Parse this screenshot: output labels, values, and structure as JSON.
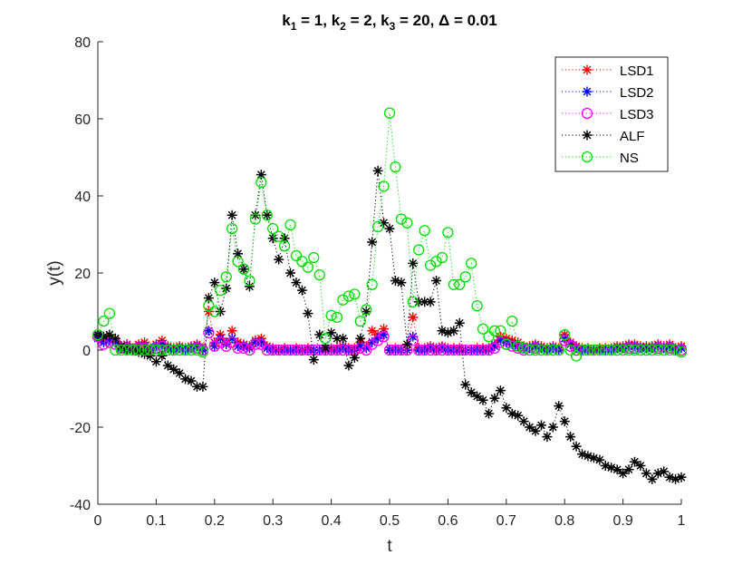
{
  "chart_data": {
    "type": "line",
    "title": {
      "parts": [
        "k",
        "1",
        " = 1, k",
        "2",
        " = 2, k",
        "3",
        " = 20, Δ = 0.01"
      ]
    },
    "xlabel": "t",
    "ylabel": "y(t)",
    "xlim": [
      0,
      1
    ],
    "ylim": [
      -40,
      80
    ],
    "xticks": [
      0,
      0.1,
      0.2,
      0.3,
      0.4,
      0.5,
      0.6,
      0.7,
      0.8,
      0.9,
      1
    ],
    "xtick_labels": [
      "0",
      "0.1",
      "0.2",
      "0.3",
      "0.4",
      "0.5",
      "0.6",
      "0.7",
      "0.8",
      "0.9",
      "1"
    ],
    "yticks": [
      -40,
      -20,
      0,
      20,
      40,
      60,
      80
    ],
    "ytick_labels": [
      "-40",
      "-20",
      "0",
      "20",
      "40",
      "60",
      "80"
    ],
    "legend_position": "top-right",
    "series": [
      {
        "name": "LSD1",
        "color": "#ff0000",
        "marker": "asterisk",
        "x": [
          0.0,
          0.01,
          0.02,
          0.03,
          0.04,
          0.05,
          0.06,
          0.07,
          0.08,
          0.09,
          0.1,
          0.11,
          0.12,
          0.13,
          0.14,
          0.15,
          0.16,
          0.17,
          0.18,
          0.19,
          0.2,
          0.21,
          0.22,
          0.23,
          0.24,
          0.25,
          0.26,
          0.27,
          0.28,
          0.29,
          0.3,
          0.31,
          0.32,
          0.33,
          0.34,
          0.35,
          0.36,
          0.37,
          0.38,
          0.39,
          0.4,
          0.41,
          0.42,
          0.43,
          0.44,
          0.45,
          0.46,
          0.47,
          0.48,
          0.49,
          0.5,
          0.51,
          0.52,
          0.53,
          0.54,
          0.55,
          0.56,
          0.57,
          0.58,
          0.59,
          0.6,
          0.61,
          0.62,
          0.63,
          0.64,
          0.65,
          0.66,
          0.67,
          0.68,
          0.69,
          0.7,
          0.71,
          0.72,
          0.73,
          0.74,
          0.75,
          0.76,
          0.77,
          0.78,
          0.79,
          0.8,
          0.81,
          0.82,
          0.83,
          0.84,
          0.85,
          0.86,
          0.87,
          0.88,
          0.89,
          0.9,
          0.91,
          0.92,
          0.93,
          0.94,
          0.95,
          0.96,
          0.97,
          0.98,
          0.99,
          1.0
        ],
        "y": [
          3.5,
          2.5,
          3,
          2.5,
          1,
          1.5,
          0.5,
          1.5,
          2,
          0.5,
          1.5,
          2.5,
          1,
          0.5,
          1,
          0.5,
          1,
          1.5,
          0.5,
          10,
          2,
          4,
          2,
          5,
          2,
          1.5,
          1,
          2.5,
          3,
          1,
          0.5,
          0,
          0.5,
          0,
          0.5,
          0,
          0.5,
          0,
          0,
          0.5,
          0.5,
          0.5,
          1,
          0.5,
          0.5,
          2,
          1,
          5,
          4,
          5.5,
          0,
          0.5,
          0,
          0,
          8.5,
          0.5,
          0.5,
          1,
          0.5,
          1,
          0.5,
          0.5,
          0.5,
          0,
          0,
          0.5,
          0.5,
          0.5,
          1.5,
          3.5,
          3,
          2.5,
          2,
          1,
          1,
          1.5,
          1,
          0.5,
          1,
          0.5,
          4,
          2,
          1,
          0.5,
          0.5,
          0,
          0.5,
          0.5,
          0.5,
          1,
          1,
          1.5,
          1.5,
          1,
          1,
          1,
          1.5,
          1,
          1.5,
          0.5,
          1
        ]
      },
      {
        "name": "LSD2",
        "color": "#0000ff",
        "marker": "asterisk",
        "x": [
          0.0,
          0.01,
          0.02,
          0.03,
          0.04,
          0.05,
          0.06,
          0.07,
          0.08,
          0.09,
          0.1,
          0.11,
          0.12,
          0.13,
          0.14,
          0.15,
          0.16,
          0.17,
          0.18,
          0.19,
          0.2,
          0.21,
          0.22,
          0.23,
          0.24,
          0.25,
          0.26,
          0.27,
          0.28,
          0.29,
          0.3,
          0.31,
          0.32,
          0.33,
          0.34,
          0.35,
          0.36,
          0.37,
          0.38,
          0.39,
          0.4,
          0.41,
          0.42,
          0.43,
          0.44,
          0.45,
          0.46,
          0.47,
          0.48,
          0.49,
          0.5,
          0.51,
          0.52,
          0.53,
          0.54,
          0.55,
          0.56,
          0.57,
          0.58,
          0.59,
          0.6,
          0.61,
          0.62,
          0.63,
          0.64,
          0.65,
          0.66,
          0.67,
          0.68,
          0.69,
          0.7,
          0.71,
          0.72,
          0.73,
          0.74,
          0.75,
          0.76,
          0.77,
          0.78,
          0.79,
          0.8,
          0.81,
          0.82,
          0.83,
          0.84,
          0.85,
          0.86,
          0.87,
          0.88,
          0.89,
          0.9,
          0.91,
          0.92,
          0.93,
          0.94,
          0.95,
          0.96,
          0.97,
          0.98,
          0.99,
          1.0
        ],
        "y": [
          3,
          2,
          2.5,
          2,
          0.5,
          1,
          0,
          1,
          1,
          0,
          1,
          1.5,
          0.5,
          0,
          0.5,
          0,
          0.5,
          1,
          0,
          5,
          1,
          3,
          1.5,
          3,
          1,
          1,
          0.5,
          2,
          2,
          0.5,
          0,
          0,
          0,
          0,
          0,
          0,
          0,
          0,
          0,
          0,
          0,
          0,
          0.5,
          0,
          0,
          1,
          0.5,
          2,
          3,
          4,
          0,
          0,
          0,
          0,
          3.5,
          0,
          0,
          0.5,
          0,
          0.5,
          0,
          0,
          0,
          0,
          0,
          0,
          0,
          0,
          1,
          2.5,
          2,
          1.5,
          1,
          0.5,
          0.5,
          1,
          0.5,
          0,
          0.5,
          0,
          3,
          1.5,
          0.5,
          0,
          0,
          0,
          0,
          0,
          0,
          0.5,
          0.5,
          1,
          1,
          0.5,
          0.5,
          0.5,
          1,
          0.5,
          1,
          0,
          0.5
        ]
      },
      {
        "name": "LSD3",
        "color": "#ff00ff",
        "marker": "circle",
        "x": [
          0.0,
          0.01,
          0.02,
          0.03,
          0.04,
          0.05,
          0.06,
          0.07,
          0.08,
          0.09,
          0.1,
          0.11,
          0.12,
          0.13,
          0.14,
          0.15,
          0.16,
          0.17,
          0.18,
          0.19,
          0.2,
          0.21,
          0.22,
          0.23,
          0.24,
          0.25,
          0.26,
          0.27,
          0.28,
          0.29,
          0.3,
          0.31,
          0.32,
          0.33,
          0.34,
          0.35,
          0.36,
          0.37,
          0.38,
          0.39,
          0.4,
          0.41,
          0.42,
          0.43,
          0.44,
          0.45,
          0.46,
          0.47,
          0.48,
          0.49,
          0.5,
          0.51,
          0.52,
          0.53,
          0.54,
          0.55,
          0.56,
          0.57,
          0.58,
          0.59,
          0.6,
          0.61,
          0.62,
          0.63,
          0.64,
          0.65,
          0.66,
          0.67,
          0.68,
          0.69,
          0.7,
          0.71,
          0.72,
          0.73,
          0.74,
          0.75,
          0.76,
          0.77,
          0.78,
          0.79,
          0.8,
          0.81,
          0.82,
          0.83,
          0.84,
          0.85,
          0.86,
          0.87,
          0.88,
          0.89,
          0.9,
          0.91,
          0.92,
          0.93,
          0.94,
          0.95,
          0.96,
          0.97,
          0.98,
          0.99,
          1.0
        ],
        "y": [
          3.5,
          1.5,
          2,
          1.5,
          0.5,
          0.5,
          0,
          0.5,
          0.5,
          0,
          0.5,
          1,
          0,
          0,
          0,
          0,
          0,
          0.5,
          0,
          4.5,
          1,
          2,
          1,
          2,
          0.5,
          0.5,
          0,
          1.5,
          1.5,
          0,
          0,
          0,
          0,
          0,
          0,
          0,
          0,
          0,
          0,
          0,
          0,
          0,
          0,
          0,
          0,
          0.5,
          0,
          1.5,
          2.5,
          3.5,
          0,
          0,
          0,
          0,
          2.5,
          0,
          0,
          0,
          0,
          0,
          0,
          0,
          0,
          0,
          0,
          0,
          0,
          0,
          0.5,
          2,
          1.5,
          1,
          0.5,
          0,
          0,
          0.5,
          0,
          0,
          0,
          0,
          2.5,
          1,
          0,
          0,
          0,
          0,
          0,
          0,
          0,
          0,
          0,
          0.5,
          0.5,
          0,
          0,
          0,
          0.5,
          0,
          0.5,
          0,
          0
        ]
      },
      {
        "name": "ALF",
        "color": "#000000",
        "marker": "asterisk",
        "x": [
          0.0,
          0.01,
          0.02,
          0.03,
          0.04,
          0.05,
          0.06,
          0.07,
          0.08,
          0.09,
          0.1,
          0.11,
          0.12,
          0.13,
          0.14,
          0.15,
          0.16,
          0.17,
          0.18,
          0.19,
          0.2,
          0.21,
          0.22,
          0.23,
          0.24,
          0.25,
          0.26,
          0.27,
          0.28,
          0.29,
          0.3,
          0.31,
          0.32,
          0.33,
          0.34,
          0.35,
          0.36,
          0.37,
          0.38,
          0.39,
          0.4,
          0.41,
          0.42,
          0.43,
          0.44,
          0.45,
          0.46,
          0.47,
          0.48,
          0.49,
          0.5,
          0.51,
          0.52,
          0.53,
          0.54,
          0.55,
          0.56,
          0.57,
          0.58,
          0.59,
          0.6,
          0.61,
          0.62,
          0.63,
          0.64,
          0.65,
          0.66,
          0.67,
          0.68,
          0.69,
          0.7,
          0.71,
          0.72,
          0.73,
          0.74,
          0.75,
          0.76,
          0.77,
          0.78,
          0.79,
          0.8,
          0.81,
          0.82,
          0.83,
          0.84,
          0.85,
          0.86,
          0.87,
          0.88,
          0.89,
          0.9,
          0.91,
          0.92,
          0.93,
          0.94,
          0.95,
          0.96,
          0.97,
          0.98,
          0.99,
          1.0
        ],
        "y": [
          4,
          3.5,
          4,
          3,
          1,
          0,
          0,
          -0.5,
          -1,
          -1.5,
          -3,
          -1.5,
          -4,
          -5,
          -6,
          -7.5,
          -8,
          -9.5,
          -9.5,
          13.5,
          17.5,
          10,
          16,
          35,
          25,
          21,
          16.5,
          35,
          45.5,
          35,
          29,
          23.5,
          29,
          20,
          17.5,
          15.5,
          9.5,
          -2.5,
          4,
          0.5,
          4.5,
          3,
          3,
          -4,
          -2,
          3,
          10,
          28,
          46.5,
          33,
          31.5,
          18,
          17.5,
          1.5,
          22.5,
          12.5,
          12.5,
          12.5,
          18,
          5,
          4.5,
          5,
          7,
          -9,
          -11,
          -12,
          -13,
          -16.5,
          -12.5,
          -10.5,
          -15,
          -16.5,
          -17,
          -18.5,
          -20,
          -21,
          -19.5,
          -22.5,
          -20,
          -14.5,
          -18.5,
          -22.5,
          -25,
          -27,
          -27.5,
          -28,
          -28.5,
          -30,
          -30.5,
          -31,
          -32,
          -31,
          -29,
          -30,
          -32,
          -33.5,
          -32,
          -31.5,
          -33,
          -33.5,
          -33
        ]
      },
      {
        "name": "NS",
        "color": "#00e000",
        "marker": "circle",
        "x": [
          0.0,
          0.01,
          0.02,
          0.03,
          0.04,
          0.05,
          0.06,
          0.07,
          0.08,
          0.09,
          0.1,
          0.11,
          0.12,
          0.13,
          0.14,
          0.15,
          0.16,
          0.17,
          0.18,
          0.19,
          0.2,
          0.21,
          0.22,
          0.23,
          0.24,
          0.25,
          0.26,
          0.27,
          0.28,
          0.29,
          0.3,
          0.31,
          0.32,
          0.33,
          0.34,
          0.35,
          0.36,
          0.37,
          0.38,
          0.39,
          0.4,
          0.41,
          0.42,
          0.43,
          0.44,
          0.45,
          0.46,
          0.47,
          0.48,
          0.49,
          0.5,
          0.51,
          0.52,
          0.53,
          0.54,
          0.55,
          0.56,
          0.57,
          0.58,
          0.59,
          0.6,
          0.61,
          0.62,
          0.63,
          0.64,
          0.65,
          0.66,
          0.67,
          0.68,
          0.69,
          0.7,
          0.71,
          0.72,
          0.73,
          0.74,
          0.75,
          0.76,
          0.77,
          0.78,
          0.79,
          0.8,
          0.81,
          0.82,
          0.83,
          0.84,
          0.85,
          0.86,
          0.87,
          0.88,
          0.89,
          0.9,
          0.91,
          0.92,
          0.93,
          0.94,
          0.95,
          0.96,
          0.97,
          0.98,
          0.99,
          1.0
        ],
        "y": [
          4,
          7.5,
          9.5,
          0,
          0,
          0,
          0,
          0,
          0,
          0,
          0,
          0,
          0,
          0,
          0,
          0,
          0,
          0,
          -0.5,
          11.5,
          10,
          15.5,
          19,
          31.5,
          23,
          21,
          18,
          34,
          43.5,
          35,
          31.5,
          29.5,
          27,
          32.5,
          24.5,
          23,
          21.5,
          24,
          19.5,
          3,
          9,
          8.5,
          13,
          14,
          14.5,
          7.5,
          10.5,
          17,
          32,
          42.5,
          61.5,
          47.5,
          34,
          33,
          12.5,
          26,
          31,
          22,
          23,
          24,
          30.5,
          17,
          17,
          19,
          22.5,
          11.5,
          5.5,
          3.5,
          5,
          5,
          1.5,
          7.5,
          1,
          0.5,
          0,
          0,
          0,
          0,
          0,
          0,
          4,
          0,
          -1.5,
          0,
          0,
          0,
          0,
          0,
          0,
          0,
          0,
          0,
          0,
          0,
          0,
          0,
          0,
          0,
          0,
          0,
          -0.5
        ]
      }
    ]
  }
}
